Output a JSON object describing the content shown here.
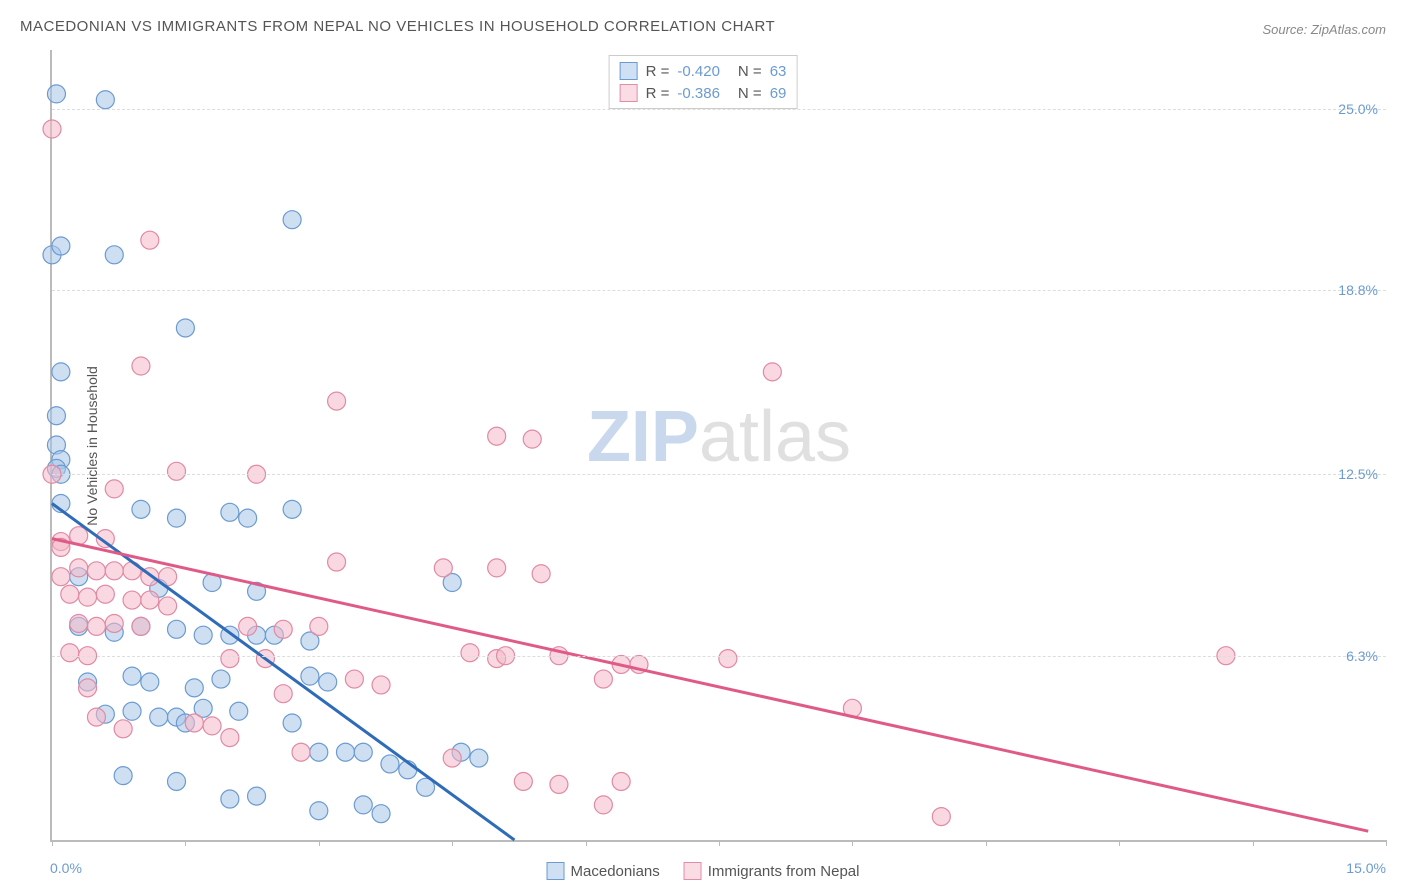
{
  "chart": {
    "type": "scatter",
    "title": "MACEDONIAN VS IMMIGRANTS FROM NEPAL NO VEHICLES IN HOUSEHOLD CORRELATION CHART",
    "source": "Source: ZipAtlas.com",
    "watermark_a": "ZIP",
    "watermark_b": "atlas",
    "y_axis_label": "No Vehicles in Household",
    "xlim": [
      0,
      15
    ],
    "ylim": [
      0,
      27
    ],
    "x_ticks": [
      0,
      1.5,
      3,
      4.5,
      6,
      7.5,
      9,
      10.5,
      12,
      13.5,
      15
    ],
    "x_tick_labels": {
      "0": "0.0%",
      "15": "15.0%"
    },
    "y_ticks": [
      6.3,
      12.5,
      18.8,
      25.0
    ],
    "y_tick_labels": [
      "6.3%",
      "12.5%",
      "18.8%",
      "25.0%"
    ],
    "background_color": "#ffffff",
    "grid_color": "#dddddd",
    "axis_color": "#bbbbbb",
    "title_color": "#555555",
    "tick_label_color": "#6b9bd1",
    "title_fontsize": 15,
    "tick_fontsize": 14,
    "series": [
      {
        "name": "Macedonians",
        "stat_R": "-0.420",
        "stat_N": "63",
        "fill": "#a8c5e8",
        "fill_opacity": 0.55,
        "stroke": "#6b9bd1",
        "swatch_fill": "#cfe0f4",
        "swatch_border": "#6b9bd1",
        "marker_r": 9,
        "trend_color": "#2e6bb8",
        "trend_width": 3,
        "trend": {
          "x1": 0.0,
          "y1": 11.5,
          "x2": 5.2,
          "y2": 0.0
        },
        "points": [
          [
            0.05,
            25.5
          ],
          [
            0.6,
            25.3
          ],
          [
            0.0,
            20.0
          ],
          [
            0.7,
            20.0
          ],
          [
            0.1,
            20.3
          ],
          [
            2.7,
            21.2
          ],
          [
            1.5,
            17.5
          ],
          [
            0.1,
            16.0
          ],
          [
            0.05,
            14.5
          ],
          [
            0.05,
            13.5
          ],
          [
            0.1,
            13.0
          ],
          [
            0.05,
            12.7
          ],
          [
            0.1,
            12.5
          ],
          [
            0.1,
            11.5
          ],
          [
            1.0,
            11.3
          ],
          [
            1.4,
            11.0
          ],
          [
            2.0,
            11.2
          ],
          [
            2.2,
            11.0
          ],
          [
            2.7,
            11.3
          ],
          [
            0.3,
            9.0
          ],
          [
            1.2,
            8.6
          ],
          [
            1.8,
            8.8
          ],
          [
            2.3,
            8.5
          ],
          [
            4.5,
            8.8
          ],
          [
            0.3,
            7.3
          ],
          [
            0.7,
            7.1
          ],
          [
            1.0,
            7.3
          ],
          [
            1.4,
            7.2
          ],
          [
            1.7,
            7.0
          ],
          [
            2.0,
            7.0
          ],
          [
            2.3,
            7.0
          ],
          [
            2.5,
            7.0
          ],
          [
            2.9,
            6.8
          ],
          [
            0.4,
            5.4
          ],
          [
            0.9,
            5.6
          ],
          [
            1.1,
            5.4
          ],
          [
            1.6,
            5.2
          ],
          [
            1.9,
            5.5
          ],
          [
            2.9,
            5.6
          ],
          [
            3.1,
            5.4
          ],
          [
            0.6,
            4.3
          ],
          [
            0.9,
            4.4
          ],
          [
            1.2,
            4.2
          ],
          [
            1.4,
            4.2
          ],
          [
            1.5,
            4.0
          ],
          [
            1.7,
            4.5
          ],
          [
            2.1,
            4.4
          ],
          [
            2.7,
            4.0
          ],
          [
            3.0,
            3.0
          ],
          [
            3.3,
            3.0
          ],
          [
            3.5,
            3.0
          ],
          [
            3.8,
            2.6
          ],
          [
            4.0,
            2.4
          ],
          [
            4.6,
            3.0
          ],
          [
            4.8,
            2.8
          ],
          [
            0.8,
            2.2
          ],
          [
            1.4,
            2.0
          ],
          [
            2.0,
            1.4
          ],
          [
            2.3,
            1.5
          ],
          [
            3.0,
            1.0
          ],
          [
            3.5,
            1.2
          ],
          [
            3.7,
            0.9
          ],
          [
            4.2,
            1.8
          ]
        ]
      },
      {
        "name": "Immigrants from Nepal",
        "stat_R": "-0.386",
        "stat_N": "69",
        "fill": "#f4b8c8",
        "fill_opacity": 0.55,
        "stroke": "#e08aa4",
        "swatch_fill": "#fadce5",
        "swatch_border": "#e28da6",
        "marker_r": 9,
        "trend_color": "#e05a87",
        "trend_width": 3,
        "trend": {
          "x1": 0.0,
          "y1": 10.3,
          "x2": 14.8,
          "y2": 0.3
        },
        "points": [
          [
            0.0,
            24.3
          ],
          [
            0.0,
            12.5
          ],
          [
            1.1,
            20.5
          ],
          [
            1.0,
            16.2
          ],
          [
            1.4,
            12.6
          ],
          [
            0.7,
            12.0
          ],
          [
            0.1,
            10.2
          ],
          [
            0.1,
            10.0
          ],
          [
            0.3,
            10.4
          ],
          [
            0.6,
            10.3
          ],
          [
            0.1,
            9.0
          ],
          [
            0.3,
            9.3
          ],
          [
            0.5,
            9.2
          ],
          [
            0.7,
            9.2
          ],
          [
            0.9,
            9.2
          ],
          [
            1.1,
            9.0
          ],
          [
            1.3,
            9.0
          ],
          [
            2.3,
            12.5
          ],
          [
            3.2,
            15.0
          ],
          [
            5.0,
            13.8
          ],
          [
            5.4,
            13.7
          ],
          [
            8.1,
            16.0
          ],
          [
            0.2,
            8.4
          ],
          [
            0.4,
            8.3
          ],
          [
            0.6,
            8.4
          ],
          [
            0.9,
            8.2
          ],
          [
            1.1,
            8.2
          ],
          [
            1.3,
            8.0
          ],
          [
            3.2,
            9.5
          ],
          [
            4.4,
            9.3
          ],
          [
            5.0,
            9.3
          ],
          [
            5.5,
            9.1
          ],
          [
            0.3,
            7.4
          ],
          [
            0.5,
            7.3
          ],
          [
            0.7,
            7.4
          ],
          [
            1.0,
            7.3
          ],
          [
            2.2,
            7.3
          ],
          [
            2.6,
            7.2
          ],
          [
            3.0,
            7.3
          ],
          [
            0.2,
            6.4
          ],
          [
            0.4,
            6.3
          ],
          [
            2.0,
            6.2
          ],
          [
            2.4,
            6.2
          ],
          [
            4.7,
            6.4
          ],
          [
            5.0,
            6.2
          ],
          [
            5.1,
            6.3
          ],
          [
            5.7,
            6.3
          ],
          [
            6.4,
            6.0
          ],
          [
            6.6,
            6.0
          ],
          [
            7.6,
            6.2
          ],
          [
            13.2,
            6.3
          ],
          [
            0.4,
            5.2
          ],
          [
            2.6,
            5.0
          ],
          [
            3.4,
            5.5
          ],
          [
            3.7,
            5.3
          ],
          [
            6.2,
            5.5
          ],
          [
            0.5,
            4.2
          ],
          [
            2.8,
            3.0
          ],
          [
            4.5,
            2.8
          ],
          [
            5.3,
            2.0
          ],
          [
            5.7,
            1.9
          ],
          [
            6.4,
            2.0
          ],
          [
            6.2,
            1.2
          ],
          [
            0.8,
            3.8
          ],
          [
            1.6,
            4.0
          ],
          [
            1.8,
            3.9
          ],
          [
            2.0,
            3.5
          ],
          [
            10.0,
            0.8
          ],
          [
            9.0,
            4.5
          ]
        ]
      }
    ],
    "bottom_legend": [
      {
        "label": "Macedonians",
        "fill": "#cfe0f4",
        "border": "#6b9bd1"
      },
      {
        "label": "Immigrants from Nepal",
        "fill": "#fadce5",
        "border": "#e28da6"
      }
    ]
  }
}
